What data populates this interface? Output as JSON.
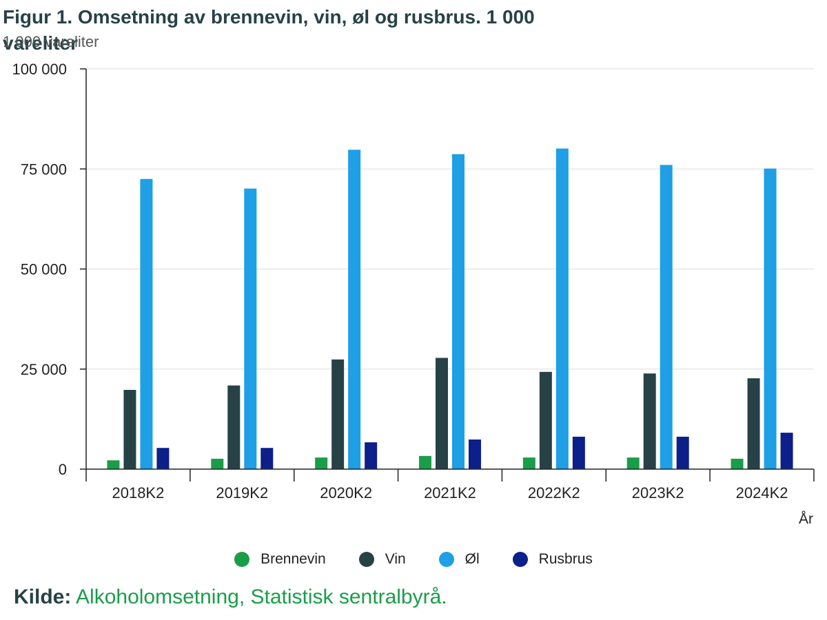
{
  "title": "Figur 1. Omsetning av brennevin, vin, øl og rusbrus. 1 000 vareliter",
  "unit_label": "1 000 vareliter",
  "source_label": "Kilde:",
  "source_text": "Alkoholomsetning, Statistisk sentralbyrå.",
  "chart_data": {
    "type": "bar",
    "xlabel": "År",
    "ylabel": "1 000 vareliter",
    "ylim": [
      0,
      100000
    ],
    "yticks": [
      0,
      25000,
      50000,
      75000,
      100000
    ],
    "ytick_labels": [
      "0",
      "25 000",
      "50 000",
      "75 000",
      "100 000"
    ],
    "grid": true,
    "legend_position": "bottom",
    "categories": [
      "2018K2",
      "2019K2",
      "2020K2",
      "2021K2",
      "2022K2",
      "2023K2",
      "2024K2"
    ],
    "series": [
      {
        "name": "Brennevin",
        "color": "#1a9d49",
        "values": [
          2200,
          2600,
          2900,
          3300,
          2900,
          2900,
          2600
        ]
      },
      {
        "name": "Vin",
        "color": "#274247",
        "values": [
          19800,
          20900,
          27400,
          27800,
          24300,
          23900,
          22700
        ]
      },
      {
        "name": "Øl",
        "color": "#1f9fe5",
        "values": [
          72500,
          70100,
          79800,
          78700,
          80100,
          76000,
          75100
        ]
      },
      {
        "name": "Rusbrus",
        "color": "#0d1f8a",
        "values": [
          5300,
          5300,
          6700,
          7400,
          8100,
          8100,
          9100
        ]
      }
    ]
  }
}
